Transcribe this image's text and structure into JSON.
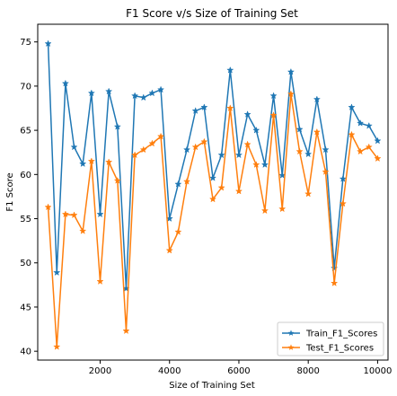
{
  "chart_data": {
    "type": "line",
    "title": "F1 Score v/s Size of Training Set",
    "xlabel": "Size of Training Set",
    "ylabel": "F1 Score",
    "xlim": [
      200,
      10300
    ],
    "ylim": [
      39,
      77
    ],
    "xticks": [
      2000,
      4000,
      6000,
      8000,
      10000
    ],
    "yticks": [
      40,
      45,
      50,
      55,
      60,
      65,
      70,
      75
    ],
    "grid": false,
    "legend_position": "bottom-right",
    "x": [
      500,
      750,
      1000,
      1250,
      1500,
      1750,
      2000,
      2250,
      2500,
      2750,
      3000,
      3250,
      3500,
      3750,
      4000,
      4250,
      4500,
      4750,
      5000,
      5250,
      5500,
      5750,
      6000,
      6250,
      6500,
      6750,
      7000,
      7250,
      7500,
      7750,
      8000,
      8250,
      8500,
      8750,
      9000,
      9250,
      9500,
      9750,
      10000
    ],
    "series": [
      {
        "name": "Train_F1_Scores",
        "color": "#1f77b4",
        "marker": "star",
        "values": [
          74.8,
          48.9,
          70.3,
          63.1,
          61.2,
          69.2,
          55.5,
          69.4,
          65.4,
          47.1,
          68.9,
          68.7,
          69.2,
          69.6,
          55.0,
          58.9,
          62.8,
          67.2,
          67.6,
          59.6,
          62.2,
          71.8,
          62.2,
          66.8,
          65.0,
          61.1,
          68.9,
          59.9,
          71.6,
          65.1,
          62.3,
          68.5,
          62.8,
          49.4,
          59.5,
          67.6,
          65.8,
          65.5,
          63.8
        ]
      },
      {
        "name": "Test_F1_Scores",
        "color": "#ff7f0e",
        "marker": "star",
        "values": [
          56.3,
          40.5,
          55.5,
          55.4,
          53.6,
          61.5,
          47.9,
          61.4,
          59.3,
          42.3,
          62.2,
          62.8,
          63.5,
          64.3,
          51.4,
          53.5,
          59.2,
          63.1,
          63.7,
          57.2,
          58.5,
          67.5,
          58.1,
          63.4,
          61.1,
          55.9,
          66.7,
          56.1,
          69.1,
          62.6,
          57.8,
          64.8,
          60.3,
          47.7,
          56.7,
          64.5,
          62.6,
          63.1,
          61.8
        ]
      }
    ]
  }
}
